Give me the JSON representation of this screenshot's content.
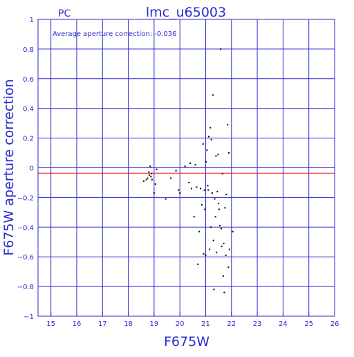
{
  "chart_data": {
    "type": "scatter",
    "title": "lmc_u65003",
    "corner_label": "PC",
    "annotation": "Average aperture correction: -0.036",
    "xlabel": "F675W",
    "ylabel": "F675W aperture correction",
    "xlim": [
      14.5,
      26
    ],
    "ylim": [
      -1,
      1
    ],
    "xticks": [
      15,
      16,
      17,
      18,
      19,
      20,
      21,
      22,
      23,
      24,
      25,
      26
    ],
    "yticks": [
      -1,
      -0.8,
      -0.6,
      -0.4,
      -0.2,
      0,
      0.2,
      0.4,
      0.6,
      0.8,
      1
    ],
    "ytick_labels": [
      "−1",
      "−0.8",
      "−0.6",
      "−0.4",
      "−0.2",
      "0",
      "0.2",
      "0.4",
      "0.6",
      "0.8",
      "1"
    ],
    "grid": true,
    "hlines": [
      {
        "y": 0,
        "color": "#2a2ad0"
      },
      {
        "y": -0.036,
        "color": "#ff0000"
      }
    ],
    "colors": {
      "axis": "#2a2ad0",
      "grid": "#2a2ad0",
      "points": "#000000",
      "mean_line": "#ff0000",
      "text": "#2a2ad0"
    },
    "points": [
      [
        18.6,
        -0.09
      ],
      [
        18.7,
        -0.08
      ],
      [
        18.75,
        -0.07
      ],
      [
        18.8,
        -0.03
      ],
      [
        18.82,
        -0.05
      ],
      [
        18.85,
        0.01
      ],
      [
        18.88,
        -0.06
      ],
      [
        18.9,
        -0.04
      ],
      [
        18.92,
        -0.08
      ],
      [
        19.0,
        -0.17
      ],
      [
        19.05,
        -0.11
      ],
      [
        19.1,
        -0.01
      ],
      [
        19.45,
        -0.21
      ],
      [
        19.65,
        -0.07
      ],
      [
        19.85,
        -0.02
      ],
      [
        19.95,
        -0.15
      ],
      [
        20.0,
        -0.17
      ],
      [
        20.2,
        0.01
      ],
      [
        20.35,
        -0.1
      ],
      [
        20.4,
        0.03
      ],
      [
        20.45,
        -0.14
      ],
      [
        20.55,
        -0.33
      ],
      [
        20.6,
        0.02
      ],
      [
        20.65,
        -0.13
      ],
      [
        20.7,
        -0.65
      ],
      [
        20.75,
        -0.43
      ],
      [
        20.8,
        -0.14
      ],
      [
        20.85,
        -0.25
      ],
      [
        20.9,
        0.16
      ],
      [
        20.92,
        -0.58
      ],
      [
        20.95,
        -0.15
      ],
      [
        20.97,
        -0.28
      ],
      [
        21.0,
        -0.59
      ],
      [
        21.02,
        0.04
      ],
      [
        21.05,
        0.12
      ],
      [
        21.08,
        -0.12
      ],
      [
        21.1,
        -0.15
      ],
      [
        21.12,
        0.21
      ],
      [
        21.15,
        -0.55
      ],
      [
        21.18,
        0.27
      ],
      [
        21.2,
        -0.4
      ],
      [
        21.22,
        0.19
      ],
      [
        21.25,
        -0.17
      ],
      [
        21.28,
        0.49
      ],
      [
        21.3,
        -0.49
      ],
      [
        21.32,
        -0.82
      ],
      [
        21.35,
        -0.21
      ],
      [
        21.38,
        -0.33
      ],
      [
        21.4,
        0.08
      ],
      [
        21.42,
        -0.57
      ],
      [
        21.45,
        -0.16
      ],
      [
        21.48,
        0.09
      ],
      [
        21.5,
        -0.24
      ],
      [
        21.52,
        -0.28
      ],
      [
        21.55,
        -0.39
      ],
      [
        21.58,
        0.8
      ],
      [
        21.6,
        -0.41
      ],
      [
        21.62,
        -0.53
      ],
      [
        21.65,
        -0.04
      ],
      [
        21.68,
        -0.73
      ],
      [
        21.7,
        -0.51
      ],
      [
        21.72,
        -0.84
      ],
      [
        21.75,
        -0.27
      ],
      [
        21.78,
        -0.59
      ],
      [
        21.8,
        -0.18
      ],
      [
        21.85,
        0.29
      ],
      [
        21.88,
        -0.67
      ],
      [
        21.9,
        0.1
      ],
      [
        21.92,
        -0.55
      ],
      [
        22.05,
        -0.43
      ]
    ]
  }
}
